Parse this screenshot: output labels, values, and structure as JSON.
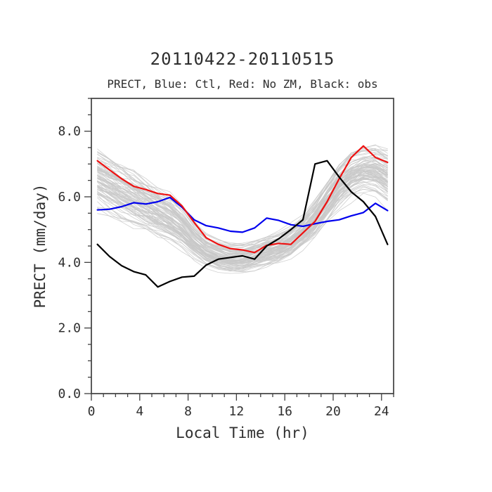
{
  "page": {
    "title": "20110422-20110515",
    "subtitle": "PRECT, Blue: Ctl, Red: No ZM, Black: obs"
  },
  "chart_data": {
    "type": "line",
    "title": "20110422-20110515",
    "subtitle": "PRECT, Blue: Ctl, Red: No ZM, Black: obs",
    "xlabel": "Local Time (hr)",
    "ylabel": "PRECT (mm/day)",
    "xlim": [
      0,
      25
    ],
    "ylim": [
      0,
      9
    ],
    "x_ticks": [
      0,
      4,
      8,
      12,
      16,
      20,
      24
    ],
    "x_tick_labels": [
      "0",
      "4",
      "8",
      "12",
      "16",
      "20",
      "24"
    ],
    "x_minor_step": 1,
    "y_ticks": [
      0,
      2,
      4,
      6,
      8
    ],
    "y_tick_labels": [
      "0.0",
      "2.0",
      "4.0",
      "6.0",
      "8.0"
    ],
    "y_minor_step": 0.5,
    "grid": false,
    "legend": "described in subtitle",
    "x": [
      0.5,
      1.5,
      2.5,
      3.5,
      4.5,
      5.5,
      6.5,
      7.5,
      8.5,
      9.5,
      10.5,
      11.5,
      12.5,
      13.5,
      14.5,
      15.5,
      16.5,
      17.5,
      18.5,
      19.5,
      20.5,
      21.5,
      22.5,
      23.5,
      24.5
    ],
    "series": [
      {
        "name": "Ctl",
        "color": "#0000ee",
        "width": 2.2,
        "values": [
          5.6,
          5.62,
          5.7,
          5.82,
          5.78,
          5.85,
          5.98,
          5.68,
          5.3,
          5.12,
          5.05,
          4.95,
          4.92,
          5.05,
          5.35,
          5.28,
          5.15,
          5.1,
          5.18,
          5.25,
          5.3,
          5.42,
          5.52,
          5.8,
          5.58
        ]
      },
      {
        "name": "No ZM",
        "color": "#ee1111",
        "width": 2.2,
        "values": [
          7.1,
          6.82,
          6.55,
          6.32,
          6.22,
          6.1,
          6.05,
          5.72,
          5.22,
          4.75,
          4.55,
          4.42,
          4.38,
          4.3,
          4.52,
          4.58,
          4.55,
          4.9,
          5.25,
          5.85,
          6.55,
          7.2,
          7.55,
          7.2,
          7.05
        ]
      },
      {
        "name": "obs",
        "color": "#000000",
        "width": 2.2,
        "values": [
          4.55,
          4.18,
          3.9,
          3.72,
          3.62,
          3.25,
          3.42,
          3.55,
          3.58,
          3.92,
          4.1,
          4.15,
          4.2,
          4.1,
          4.5,
          4.72,
          5.0,
          5.3,
          7.0,
          7.1,
          6.6,
          6.15,
          5.85,
          5.4,
          4.55
        ]
      }
    ],
    "ensemble": {
      "name": "ensemble-members",
      "color": "#c9c9c9",
      "count": 90,
      "mean": [
        6.55,
        6.35,
        6.15,
        5.95,
        5.75,
        5.55,
        5.35,
        5.05,
        4.65,
        4.35,
        4.2,
        4.1,
        4.1,
        4.2,
        4.3,
        4.42,
        4.6,
        4.9,
        5.3,
        5.8,
        6.3,
        6.62,
        6.8,
        6.8,
        6.6
      ],
      "spread": [
        0.55,
        0.52,
        0.5,
        0.48,
        0.45,
        0.42,
        0.4,
        0.36,
        0.3,
        0.27,
        0.25,
        0.24,
        0.24,
        0.25,
        0.27,
        0.28,
        0.3,
        0.32,
        0.36,
        0.42,
        0.46,
        0.46,
        0.46,
        0.48,
        0.52
      ]
    },
    "frame_color": "#3f3f3f"
  }
}
